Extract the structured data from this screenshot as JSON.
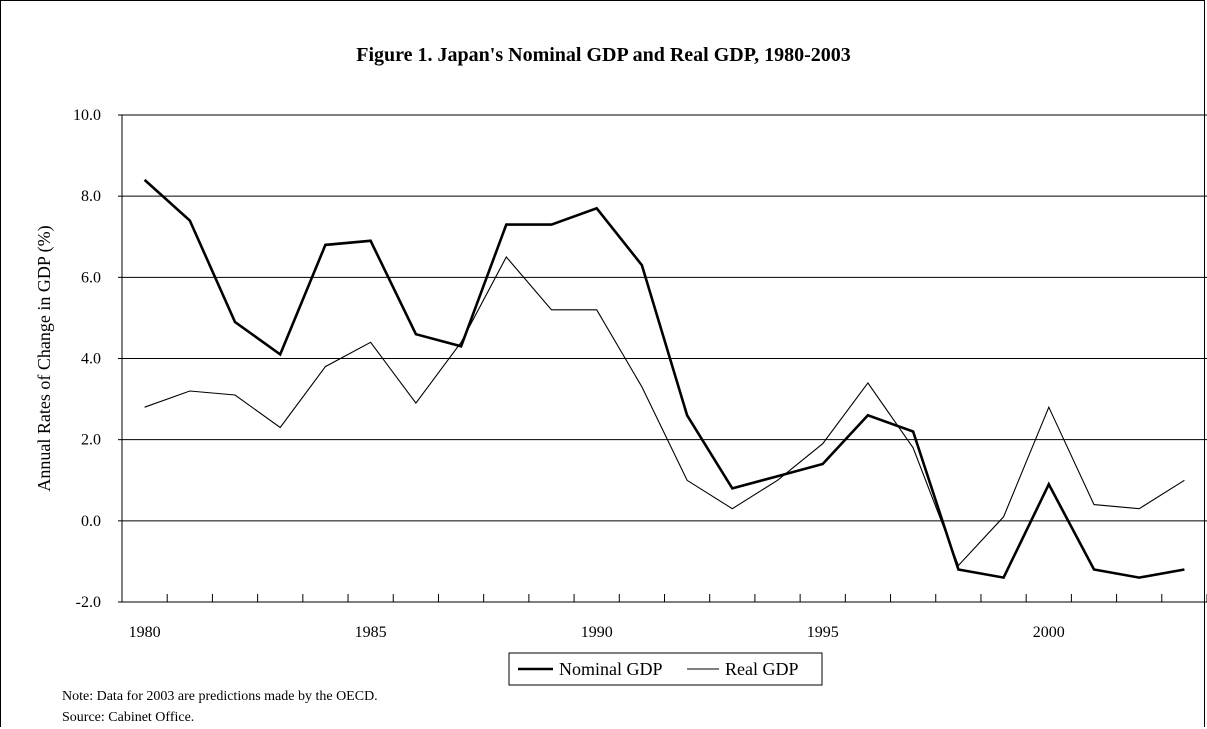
{
  "chart_data": {
    "type": "line",
    "title": "Figure 1. Japan's Nominal GDP and Real GDP, 1980-2003",
    "xlabel": "",
    "ylabel": "Annual Rates of Change in GDP (%)",
    "x": [
      1980,
      1981,
      1982,
      1983,
      1984,
      1985,
      1986,
      1987,
      1988,
      1989,
      1990,
      1991,
      1992,
      1993,
      1994,
      1995,
      1996,
      1997,
      1998,
      1999,
      2000,
      2001,
      2002,
      2003
    ],
    "xticks": [
      "1980",
      "1985",
      "1990",
      "1995",
      "2000"
    ],
    "yticks": [
      "10.0",
      "8.0",
      "6.0",
      "4.0",
      "2.0",
      "0.0",
      "-2.0"
    ],
    "ylim": [
      -2.0,
      10.0
    ],
    "grid": "horizontal",
    "legend_position": "bottom",
    "series": [
      {
        "name": "Nominal GDP",
        "values": [
          8.4,
          7.4,
          4.9,
          4.1,
          6.8,
          6.9,
          4.6,
          4.3,
          7.3,
          7.3,
          7.7,
          6.3,
          2.6,
          0.8,
          1.1,
          1.4,
          2.6,
          2.2,
          -1.2,
          -1.4,
          0.9,
          -1.2,
          -1.4,
          -1.2
        ]
      },
      {
        "name": "Real GDP",
        "values": [
          2.8,
          3.2,
          3.1,
          2.3,
          3.8,
          4.4,
          2.9,
          4.4,
          6.5,
          5.2,
          5.2,
          3.3,
          1.0,
          0.3,
          1.0,
          1.9,
          3.4,
          1.8,
          -1.1,
          0.1,
          2.8,
          0.4,
          0.3,
          1.0
        ]
      }
    ]
  },
  "notes": {
    "note": "Note: Data for 2003 are predictions made by the OECD.",
    "source": "Source: Cabinet Office."
  }
}
